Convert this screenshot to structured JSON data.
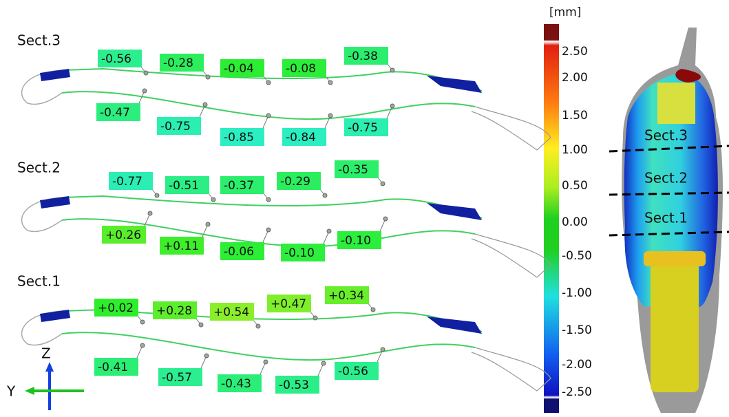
{
  "sections": [
    {
      "title": "Sect.3",
      "top_labels": [
        "-0.56",
        "-0.28",
        "-0.04",
        "-0.08",
        "-0.38"
      ],
      "bottom_labels": [
        "-0.47",
        "-0.75",
        "-0.85",
        "-0.84",
        "-0.75"
      ]
    },
    {
      "title": "Sect.2",
      "top_labels": [
        "-0.77",
        "-0.51",
        "-0.37",
        "-0.29",
        "-0.35"
      ],
      "bottom_labels": [
        "+0.26",
        "+0.11",
        "-0.06",
        "-0.10",
        "-0.10"
      ]
    },
    {
      "title": "Sect.1",
      "top_labels": [
        "+0.02",
        "+0.28",
        "+0.54",
        "+0.47",
        "+0.34"
      ],
      "bottom_labels": [
        "-0.41",
        "-0.57",
        "-0.43",
        "-0.53",
        "-0.56"
      ]
    }
  ],
  "colorbar": {
    "unit": "[mm]",
    "ticks": [
      "2.50",
      "2.00",
      "1.50",
      "1.00",
      "0.50",
      "0.00",
      "-0.50",
      "-1.00",
      "-1.50",
      "-2.00",
      "-2.50"
    ]
  },
  "model": {
    "section_labels": [
      "Sect.3",
      "Sect.2",
      "Sect.1"
    ]
  },
  "axes": {
    "z": "Z",
    "y": "Y"
  }
}
